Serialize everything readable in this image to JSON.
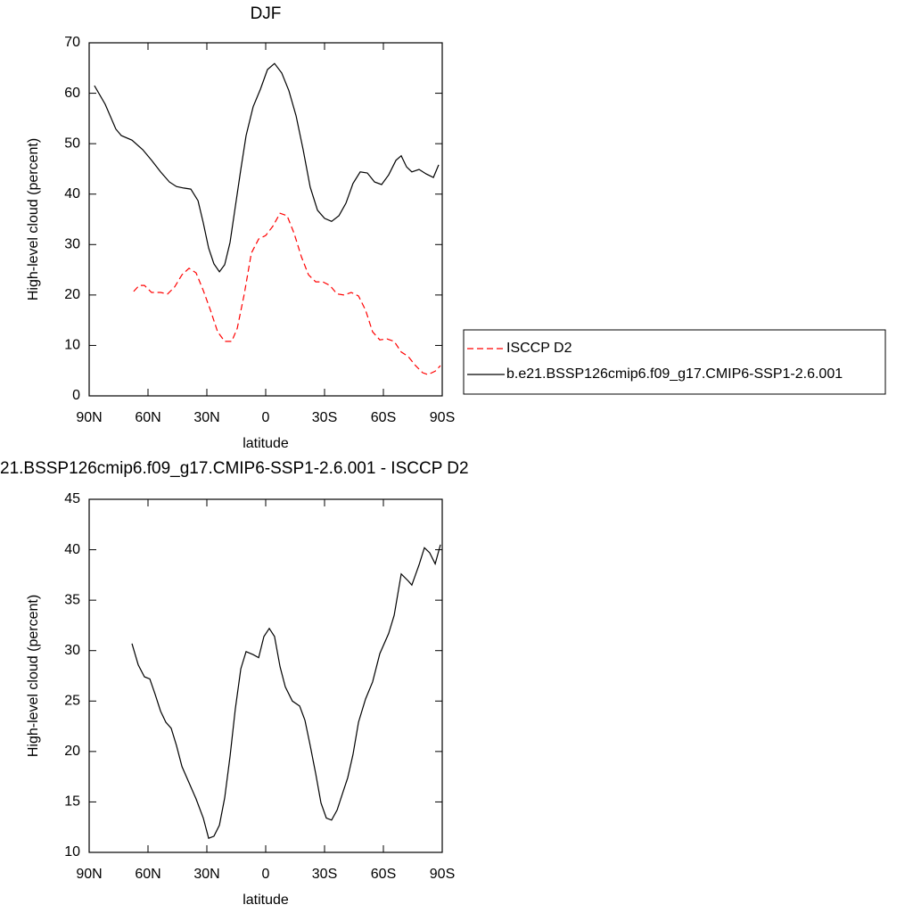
{
  "chart_data": [
    {
      "type": "line",
      "title": "DJF",
      "xlabel": "latitude",
      "ylabel": "High-level cloud (percent)",
      "xlim": [
        90,
        -90
      ],
      "xticks": [
        {
          "value": 90,
          "label": "90N"
        },
        {
          "value": 60,
          "label": "60N"
        },
        {
          "value": 30,
          "label": "30N"
        },
        0,
        {
          "value": -30,
          "label": "30S"
        },
        {
          "value": -60,
          "label": "60S"
        },
        {
          "value": -90,
          "label": "90S"
        }
      ],
      "ylim": [
        0,
        70
      ],
      "yticks": [
        0,
        10,
        20,
        30,
        40,
        50,
        60,
        70
      ],
      "legend": "right",
      "series": [
        {
          "name": "ISCCP D2",
          "color": "#ff0000",
          "line_style": "dashed",
          "x": [
            67.3,
            64.5,
            61.8,
            58.2,
            53.6,
            50,
            46.4,
            42.7,
            39.1,
            35.5,
            31.8,
            28.2,
            24.5,
            20.9,
            17.3,
            14.5,
            10.9,
            7.3,
            3.6,
            0,
            -3.6,
            -7.3,
            -10.9,
            -14.5,
            -18.2,
            -21.8,
            -25.5,
            -29.1,
            -32.7,
            -36.4,
            -40,
            -43.6,
            -47.3,
            -50.9,
            -54.5,
            -58.2,
            -61.8,
            -65.5,
            -69.1,
            -72.7,
            -76.4,
            -80,
            -82.7,
            -86.4,
            -89.1
          ],
          "values": [
            20.7,
            21.9,
            21.9,
            20.5,
            20.5,
            20.2,
            21.6,
            24.0,
            25.3,
            24.4,
            20.9,
            17.0,
            12.7,
            10.8,
            10.8,
            13.4,
            20.2,
            28.3,
            31.1,
            31.8,
            33.6,
            36.2,
            35.7,
            32.2,
            27.6,
            24.0,
            22.6,
            22.6,
            21.9,
            20.2,
            20.0,
            20.5,
            19.8,
            17.0,
            12.7,
            11.1,
            11.3,
            10.8,
            8.7,
            7.8,
            6.0,
            4.6,
            4.2,
            4.9,
            6.0
          ]
        },
        {
          "name": "b.e21.BSSP126cmip6.f09_g17.CMIP6-SSP1-2.6.001",
          "color": "#000000",
          "line_style": "solid",
          "x": [
            87.3,
            81.8,
            76.4,
            73.6,
            68.2,
            62.7,
            58.2,
            53.6,
            49.1,
            45.5,
            41.8,
            38.2,
            34.5,
            31.8,
            29.1,
            26.4,
            23.6,
            20.9,
            18.2,
            15.5,
            12.7,
            10.0,
            6.4,
            2.7,
            -0.9,
            -4.5,
            -8.2,
            -11.8,
            -15.5,
            -19.1,
            -22.7,
            -26.4,
            -30,
            -33.6,
            -37.3,
            -40.9,
            -44.5,
            -48.2,
            -51.8,
            -55.5,
            -59.1,
            -62.7,
            -66.4,
            -69.1,
            -71.8,
            -74.5,
            -78.2,
            -81.8,
            -85.5,
            -88.2
          ],
          "values": [
            61.5,
            57.8,
            52.9,
            51.6,
            50.7,
            48.8,
            46.7,
            44.4,
            42.4,
            41.5,
            41.2,
            41.0,
            38.7,
            34.3,
            29.3,
            26.2,
            24.6,
            26.0,
            30.4,
            37.5,
            44.9,
            51.6,
            57.3,
            60.8,
            64.7,
            65.9,
            64.0,
            60.5,
            55.5,
            48.8,
            41.4,
            36.8,
            35.2,
            34.6,
            35.7,
            38.2,
            42.1,
            44.4,
            44.2,
            42.4,
            41.9,
            43.8,
            46.7,
            47.6,
            45.4,
            44.4,
            44.9,
            44.0,
            43.3,
            45.8
          ]
        }
      ]
    },
    {
      "type": "line",
      "title": "21.BSSP126cmip6.f09_g17.CMIP6-SSP1-2.6.001 - ISCCP D2",
      "xlabel": "latitude",
      "ylabel": "High-level cloud (percent)",
      "xlim": [
        90,
        -90
      ],
      "xticks": [
        {
          "value": 90,
          "label": "90N"
        },
        {
          "value": 60,
          "label": "60N"
        },
        {
          "value": 30,
          "label": "30N"
        },
        0,
        {
          "value": -30,
          "label": "30S"
        },
        {
          "value": -60,
          "label": "60S"
        },
        {
          "value": -90,
          "label": "90S"
        }
      ],
      "ylim": [
        10,
        45
      ],
      "yticks": [
        10,
        15,
        20,
        25,
        30,
        35,
        40,
        45
      ],
      "series": [
        {
          "color": "#000000",
          "line_style": "solid",
          "x": [
            68.2,
            65,
            61.8,
            59.1,
            56.4,
            53.6,
            50.9,
            48.2,
            45.5,
            42.7,
            39.1,
            35.5,
            31.8,
            29.1,
            26.4,
            23.6,
            20.9,
            18.2,
            15.5,
            12.7,
            10.0,
            6.4,
            3.6,
            0.9,
            -1.8,
            -4.5,
            -7.3,
            -10,
            -13.6,
            -17.3,
            -20,
            -22.7,
            -25.5,
            -28.2,
            -30.9,
            -33.6,
            -36.4,
            -39.1,
            -41.8,
            -44.5,
            -47.3,
            -50.9,
            -54.5,
            -58.2,
            -62.7,
            -65.5,
            -69.1,
            -72.7,
            -74.5,
            -78.2,
            -80.9,
            -83.6,
            -86.4,
            -89.1
          ],
          "values": [
            30.7,
            28.6,
            27.4,
            27.2,
            25.7,
            24.0,
            22.9,
            22.3,
            20.6,
            18.5,
            16.9,
            15.3,
            13.4,
            11.4,
            11.6,
            12.7,
            15.4,
            19.5,
            24.2,
            28.2,
            29.9,
            29.6,
            29.3,
            31.4,
            32.2,
            31.4,
            28.4,
            26.4,
            25.0,
            24.5,
            23.1,
            20.6,
            17.8,
            14.9,
            13.4,
            13.2,
            14.2,
            15.8,
            17.4,
            19.7,
            22.9,
            25.2,
            26.9,
            29.7,
            31.7,
            33.5,
            37.6,
            36.9,
            36.5,
            38.5,
            40.2,
            39.7,
            38.6,
            40.5
          ]
        }
      ]
    }
  ]
}
